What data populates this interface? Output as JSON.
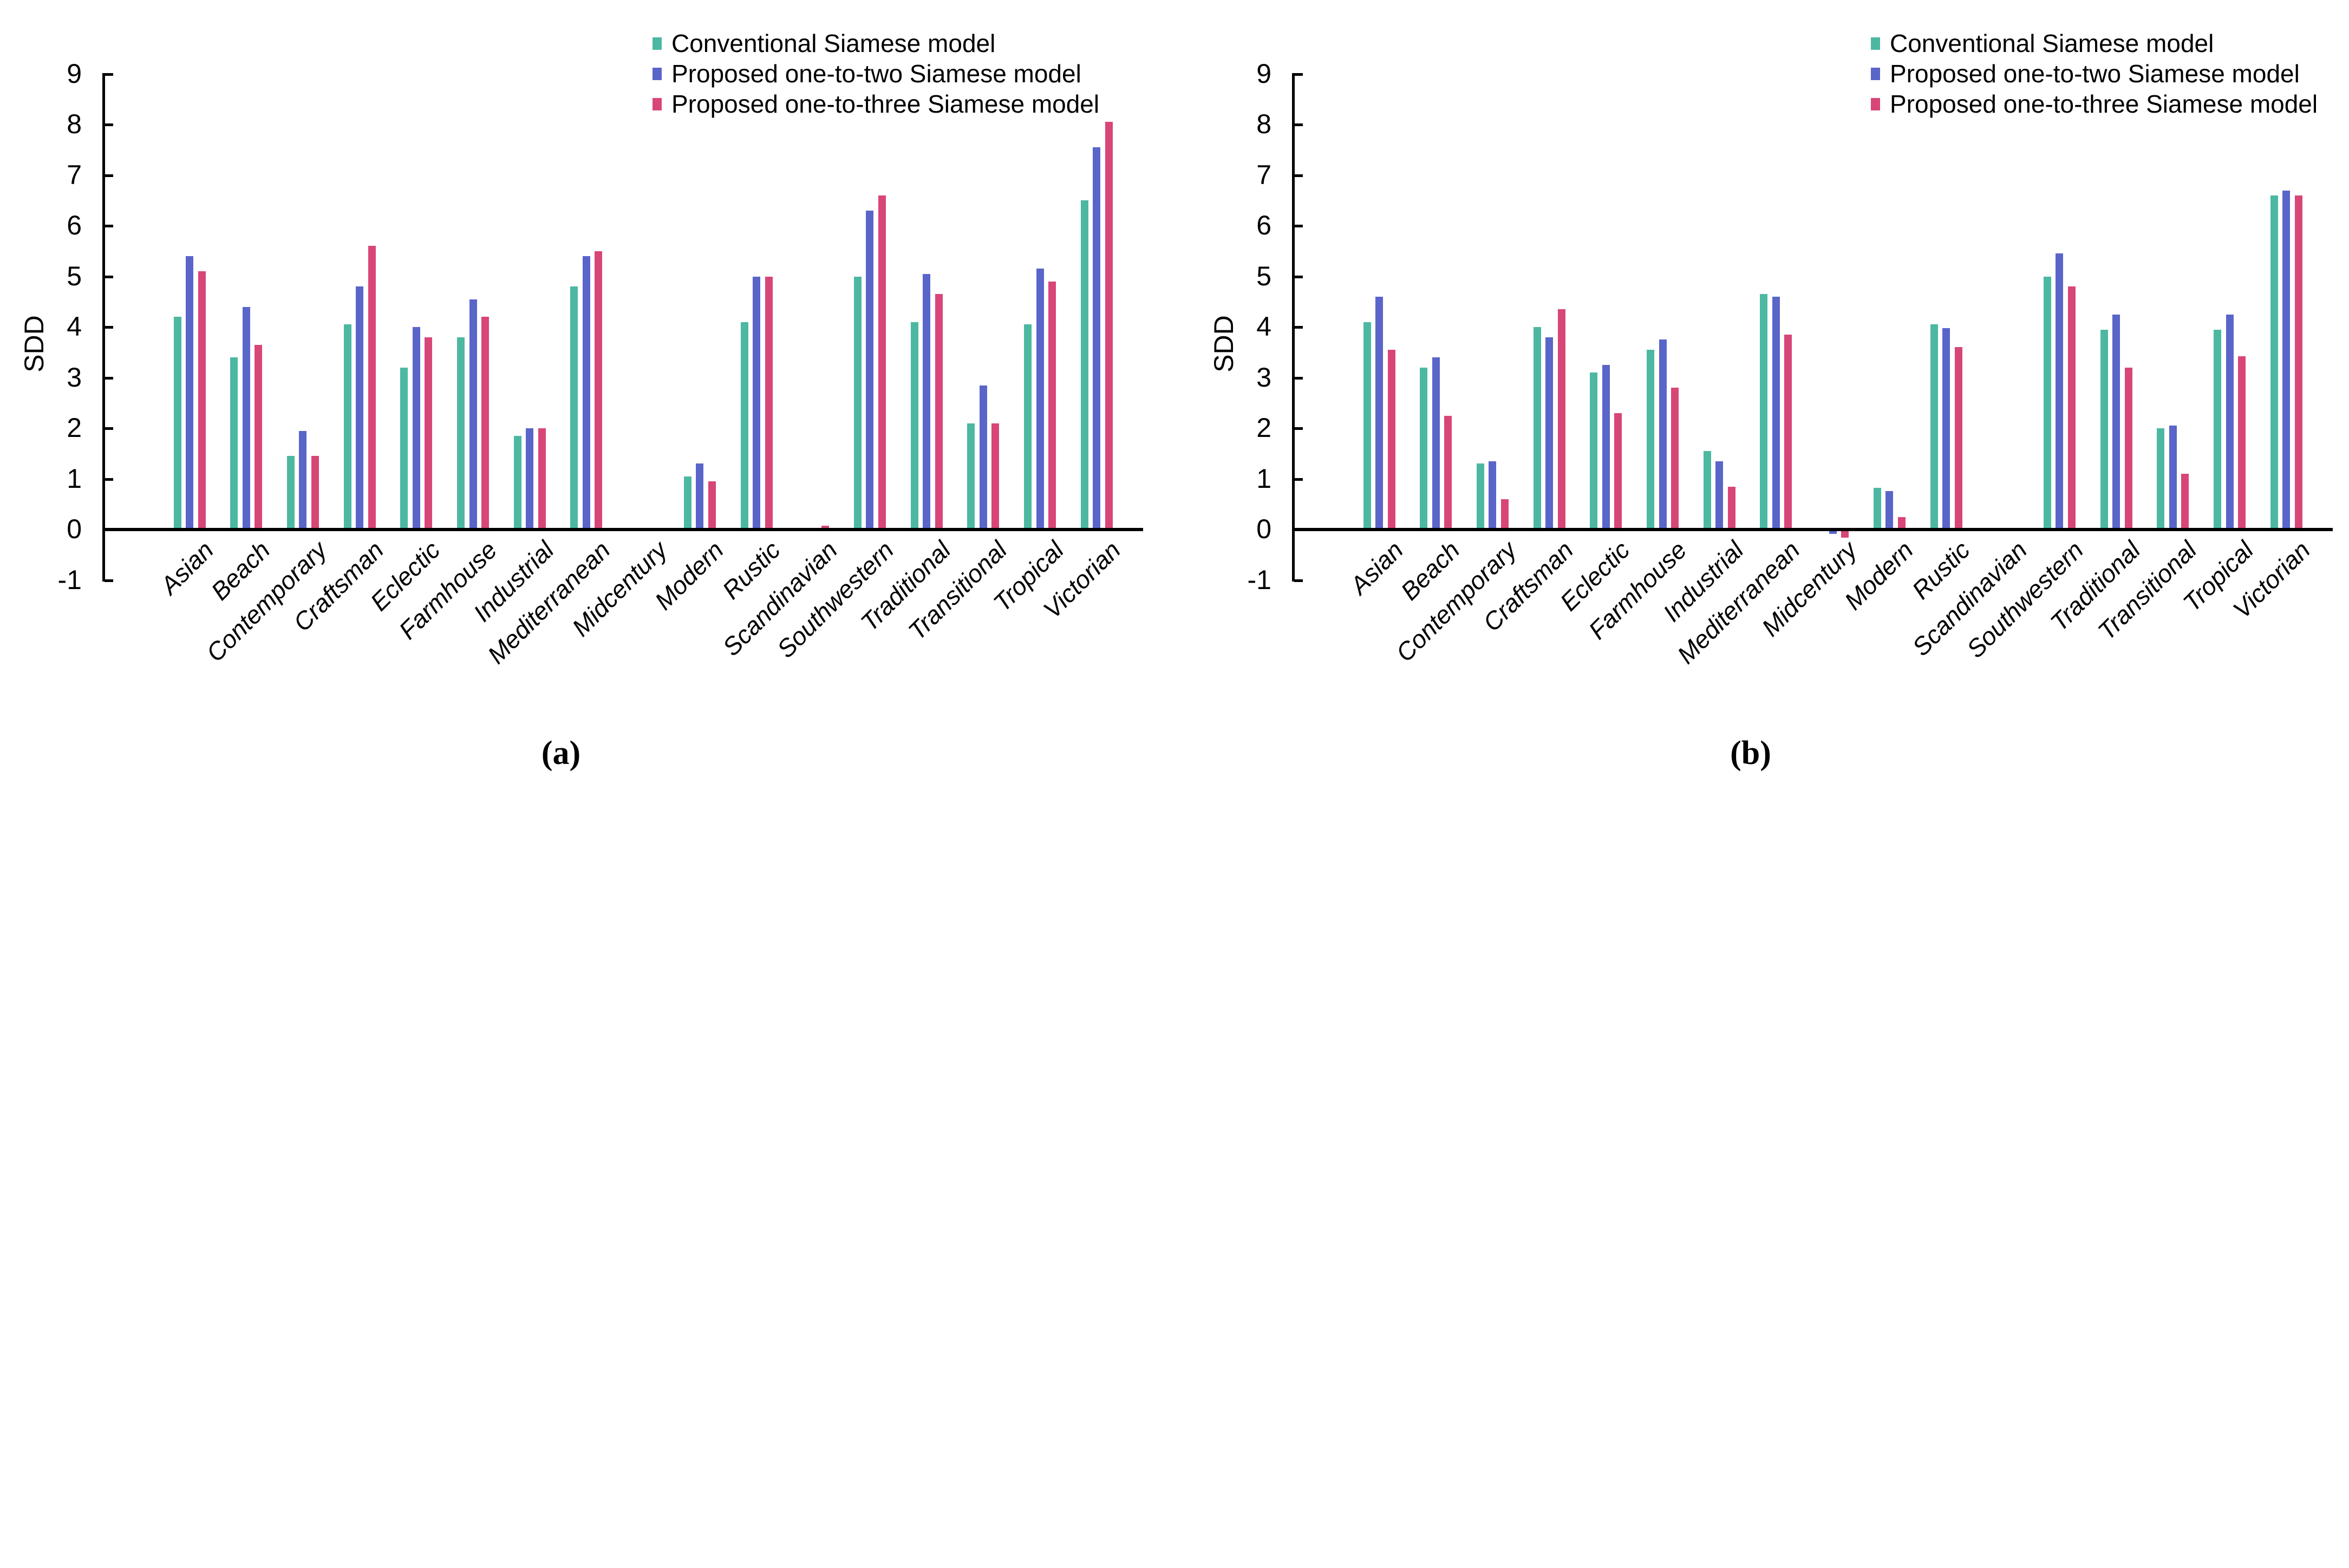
{
  "figure": {
    "ylabel": "SDD",
    "captions": [
      "(a)",
      "(b)"
    ]
  },
  "colors": {
    "conventional": "#4CB8A2",
    "one_to_two": "#5A65C9",
    "one_to_three": "#D84677",
    "axis": "#000000",
    "background": "#ffffff"
  },
  "legend": {
    "items": [
      {
        "label": "Conventional Siamese model",
        "color": "#4CB8A2"
      },
      {
        "label": "Proposed one-to-two Siamese model",
        "color": "#5A65C9"
      },
      {
        "label": "Proposed one-to-three Siamese model",
        "color": "#D84677"
      }
    ]
  },
  "chart_data": [
    {
      "id": "a",
      "type": "bar",
      "caption": "(a)",
      "ylabel": "SDD",
      "ylim": [
        -1,
        9
      ],
      "yticks": [
        "9",
        "8",
        "7",
        "6",
        "5",
        "4",
        "3",
        "2",
        "1",
        "0",
        "-1"
      ],
      "grid": false,
      "legend_position": "upper right",
      "categories": [
        "Asian",
        "Beach",
        "Contemporary",
        "Craftsman",
        "Eclectic",
        "Farmhouse",
        "Industrial",
        "Mediterranean",
        "Midcentury",
        "Modern",
        "Rustic",
        "Scandinavian",
        "Southwestern",
        "Traditional",
        "Transitional",
        "Tropical",
        "Victorian"
      ],
      "series": [
        {
          "name": "Conventional Siamese model",
          "color": "#4CB8A2",
          "values": [
            4.2,
            3.4,
            1.45,
            4.05,
            3.2,
            3.8,
            1.85,
            4.8,
            0,
            1.05,
            4.1,
            0,
            5.0,
            4.1,
            2.1,
            4.05,
            6.5
          ]
        },
        {
          "name": "Proposed one-to-two Siamese model",
          "color": "#5A65C9",
          "values": [
            5.4,
            4.4,
            1.95,
            4.8,
            4.0,
            4.55,
            2.0,
            5.4,
            0,
            1.3,
            5.0,
            0,
            6.3,
            5.05,
            2.85,
            5.15,
            7.55
          ]
        },
        {
          "name": "Proposed one-to-three Siamese model",
          "color": "#D84677",
          "values": [
            5.1,
            3.65,
            1.45,
            5.6,
            3.8,
            4.2,
            2.0,
            5.5,
            0,
            0.95,
            5.0,
            0.08,
            6.6,
            4.65,
            2.1,
            4.9,
            8.05
          ]
        }
      ]
    },
    {
      "id": "b",
      "type": "bar",
      "caption": "(b)",
      "ylabel": "SDD",
      "ylim": [
        -1,
        9
      ],
      "yticks": [
        "9",
        "8",
        "7",
        "6",
        "5",
        "4",
        "3",
        "2",
        "1",
        "0",
        "-1"
      ],
      "grid": false,
      "legend_position": "upper right",
      "categories": [
        "Asian",
        "Beach",
        "Contemporary",
        "Craftsman",
        "Eclectic",
        "Farmhouse",
        "Industrial",
        "Mediterranean",
        "Midcentury",
        "Modern",
        "Rustic",
        "Scandinavian",
        "Southwestern",
        "Traditional",
        "Transitional",
        "Tropical",
        "Victorian"
      ],
      "series": [
        {
          "name": "Conventional Siamese model",
          "color": "#4CB8A2",
          "values": [
            4.1,
            3.2,
            1.3,
            4.0,
            3.1,
            3.55,
            1.55,
            4.65,
            0,
            0.82,
            4.05,
            0,
            5.0,
            3.95,
            2.0,
            3.95,
            6.6
          ]
        },
        {
          "name": "Proposed one-to-two Siamese model",
          "color": "#5A65C9",
          "values": [
            4.6,
            3.4,
            1.35,
            3.8,
            3.25,
            3.75,
            1.35,
            4.6,
            -0.05,
            0.76,
            3.98,
            0,
            5.45,
            4.25,
            2.05,
            4.25,
            6.7
          ]
        },
        {
          "name": "Proposed one-to-three Siamese model",
          "color": "#D84677",
          "values": [
            3.55,
            2.25,
            0.6,
            4.35,
            2.3,
            2.8,
            0.85,
            3.85,
            -0.13,
            0.25,
            3.6,
            0,
            4.8,
            3.2,
            1.1,
            3.42,
            6.6
          ]
        }
      ]
    }
  ]
}
